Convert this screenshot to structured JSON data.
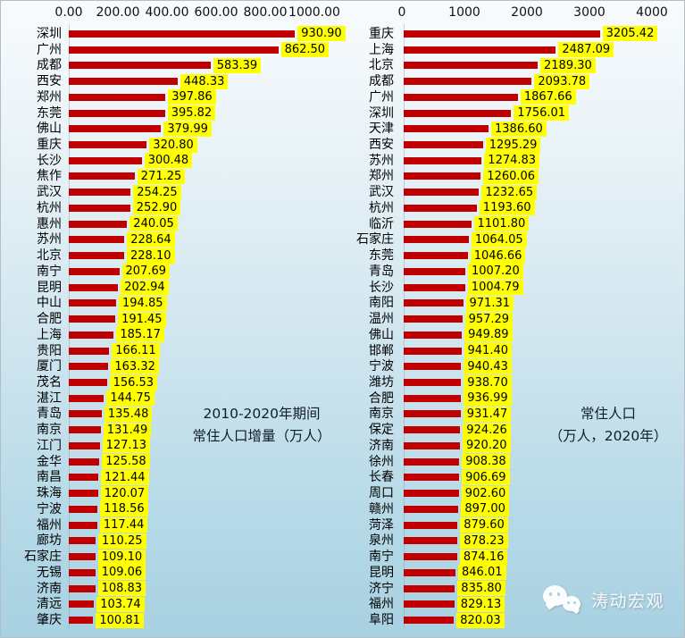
{
  "watermark": {
    "text": "涛动宏观",
    "icon": "wechat-icon"
  },
  "colors": {
    "bar": "#C00000",
    "value_label_bg": "#FFFF00",
    "background_top": "#F8FBFD",
    "background_bottom": "#A8D1E1",
    "text": "#000000"
  },
  "chart_data": [
    {
      "type": "bar",
      "orientation": "horizontal",
      "title": "2010-2020年期间 常住人口增量（万人）",
      "title_lines": [
        "2010-2020年期间",
        "常住人口增量（万人）"
      ],
      "xlim": [
        0,
        1000
      ],
      "x_ticks": [
        "0.00",
        "200.00",
        "400.00",
        "600.00",
        "800.00",
        "1000.00"
      ],
      "x_axis_position": "top",
      "grid": false,
      "legend": false,
      "value_label_decimals": 2,
      "categories": [
        "深圳",
        "广州",
        "成都",
        "西安",
        "郑州",
        "东莞",
        "佛山",
        "重庆",
        "长沙",
        "焦作",
        "武汉",
        "杭州",
        "惠州",
        "苏州",
        "北京",
        "南宁",
        "昆明",
        "中山",
        "合肥",
        "上海",
        "贵阳",
        "厦门",
        "茂名",
        "湛江",
        "青岛",
        "南京",
        "江门",
        "金华",
        "南昌",
        "珠海",
        "宁波",
        "福州",
        "廊坊",
        "石家庄",
        "无锡",
        "济南",
        "清远",
        "肇庆"
      ],
      "values": [
        930.9,
        862.5,
        583.39,
        448.33,
        397.86,
        395.82,
        379.99,
        320.8,
        300.48,
        271.25,
        254.25,
        252.9,
        240.05,
        228.64,
        228.1,
        207.69,
        202.94,
        194.85,
        191.45,
        185.17,
        166.11,
        163.32,
        156.53,
        144.75,
        135.48,
        131.49,
        127.13,
        125.58,
        121.44,
        120.07,
        118.56,
        117.44,
        110.25,
        109.1,
        109.06,
        108.83,
        103.74,
        100.81
      ]
    },
    {
      "type": "bar",
      "orientation": "horizontal",
      "title": "常住人口（万人，2020年）",
      "title_lines": [
        "常住人口",
        "（万人，2020年）"
      ],
      "xlim": [
        0,
        4000
      ],
      "x_ticks": [
        "0",
        "1000",
        "2000",
        "3000",
        "4000"
      ],
      "x_axis_position": "top",
      "grid": false,
      "legend": false,
      "value_label_decimals": 2,
      "categories": [
        "重庆",
        "上海",
        "北京",
        "成都",
        "广州",
        "深圳",
        "天津",
        "西安",
        "苏州",
        "郑州",
        "武汉",
        "杭州",
        "临沂",
        "石家庄",
        "东莞",
        "青岛",
        "长沙",
        "南阳",
        "温州",
        "佛山",
        "邯郸",
        "宁波",
        "潍坊",
        "合肥",
        "南京",
        "保定",
        "济南",
        "徐州",
        "长春",
        "周口",
        "赣州",
        "菏泽",
        "泉州",
        "南宁",
        "昆明",
        "济宁",
        "福州",
        "阜阳"
      ],
      "values": [
        3205.42,
        2487.09,
        2189.3,
        2093.78,
        1867.66,
        1756.01,
        1386.6,
        1295.29,
        1274.83,
        1260.06,
        1232.65,
        1193.6,
        1101.8,
        1064.05,
        1046.66,
        1007.2,
        1004.79,
        971.31,
        957.29,
        949.89,
        941.4,
        940.43,
        938.7,
        936.99,
        931.47,
        924.26,
        920.2,
        908.38,
        906.69,
        902.6,
        897.0,
        879.6,
        878.23,
        874.16,
        846.01,
        835.8,
        829.13,
        820.03
      ]
    }
  ]
}
